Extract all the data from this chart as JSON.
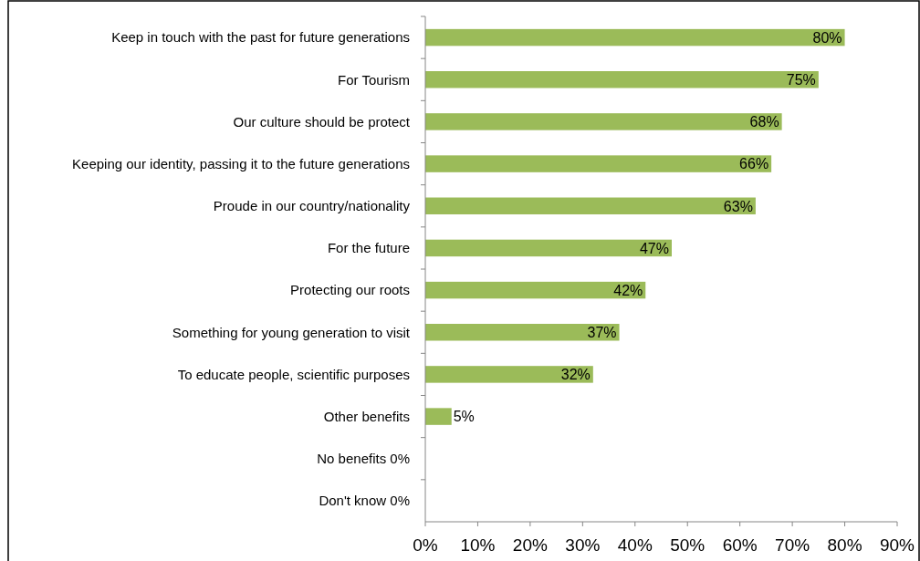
{
  "chart_data": {
    "type": "bar",
    "orientation": "horizontal",
    "categories": [
      "Keep in touch with the past for future generations",
      "For Tourism",
      "Our culture should be protect",
      "Keeping our identity, passing it to the future generations",
      "Proude in our country/nationality",
      "For the future ",
      "Protecting our roots",
      "Something for young generation to visit",
      "To educate people, scientific purposes",
      "Other benefits",
      "No benefits 0%",
      "Don't know 0%"
    ],
    "values": [
      80,
      75,
      68,
      66,
      63,
      47,
      42,
      37,
      32,
      5,
      0,
      0
    ],
    "value_labels": [
      "80%",
      "75%",
      "68%",
      "66%",
      "63%",
      "47%",
      "42%",
      "37%",
      "32%",
      "5%",
      null,
      null
    ],
    "color": "#9bbb59",
    "xlim": [
      0,
      90
    ],
    "xticks": [
      {
        "value": 0,
        "label": "0%"
      },
      {
        "value": 10,
        "label": "10%"
      },
      {
        "value": 20,
        "label": "20%"
      },
      {
        "value": 30,
        "label": "30%"
      },
      {
        "value": 40,
        "label": "40%"
      },
      {
        "value": 50,
        "label": "50%"
      },
      {
        "value": 60,
        "label": "60%"
      },
      {
        "value": 70,
        "label": "70%"
      },
      {
        "value": 80,
        "label": "80%"
      },
      {
        "value": 90,
        "label": "90%"
      }
    ],
    "grid": false
  }
}
